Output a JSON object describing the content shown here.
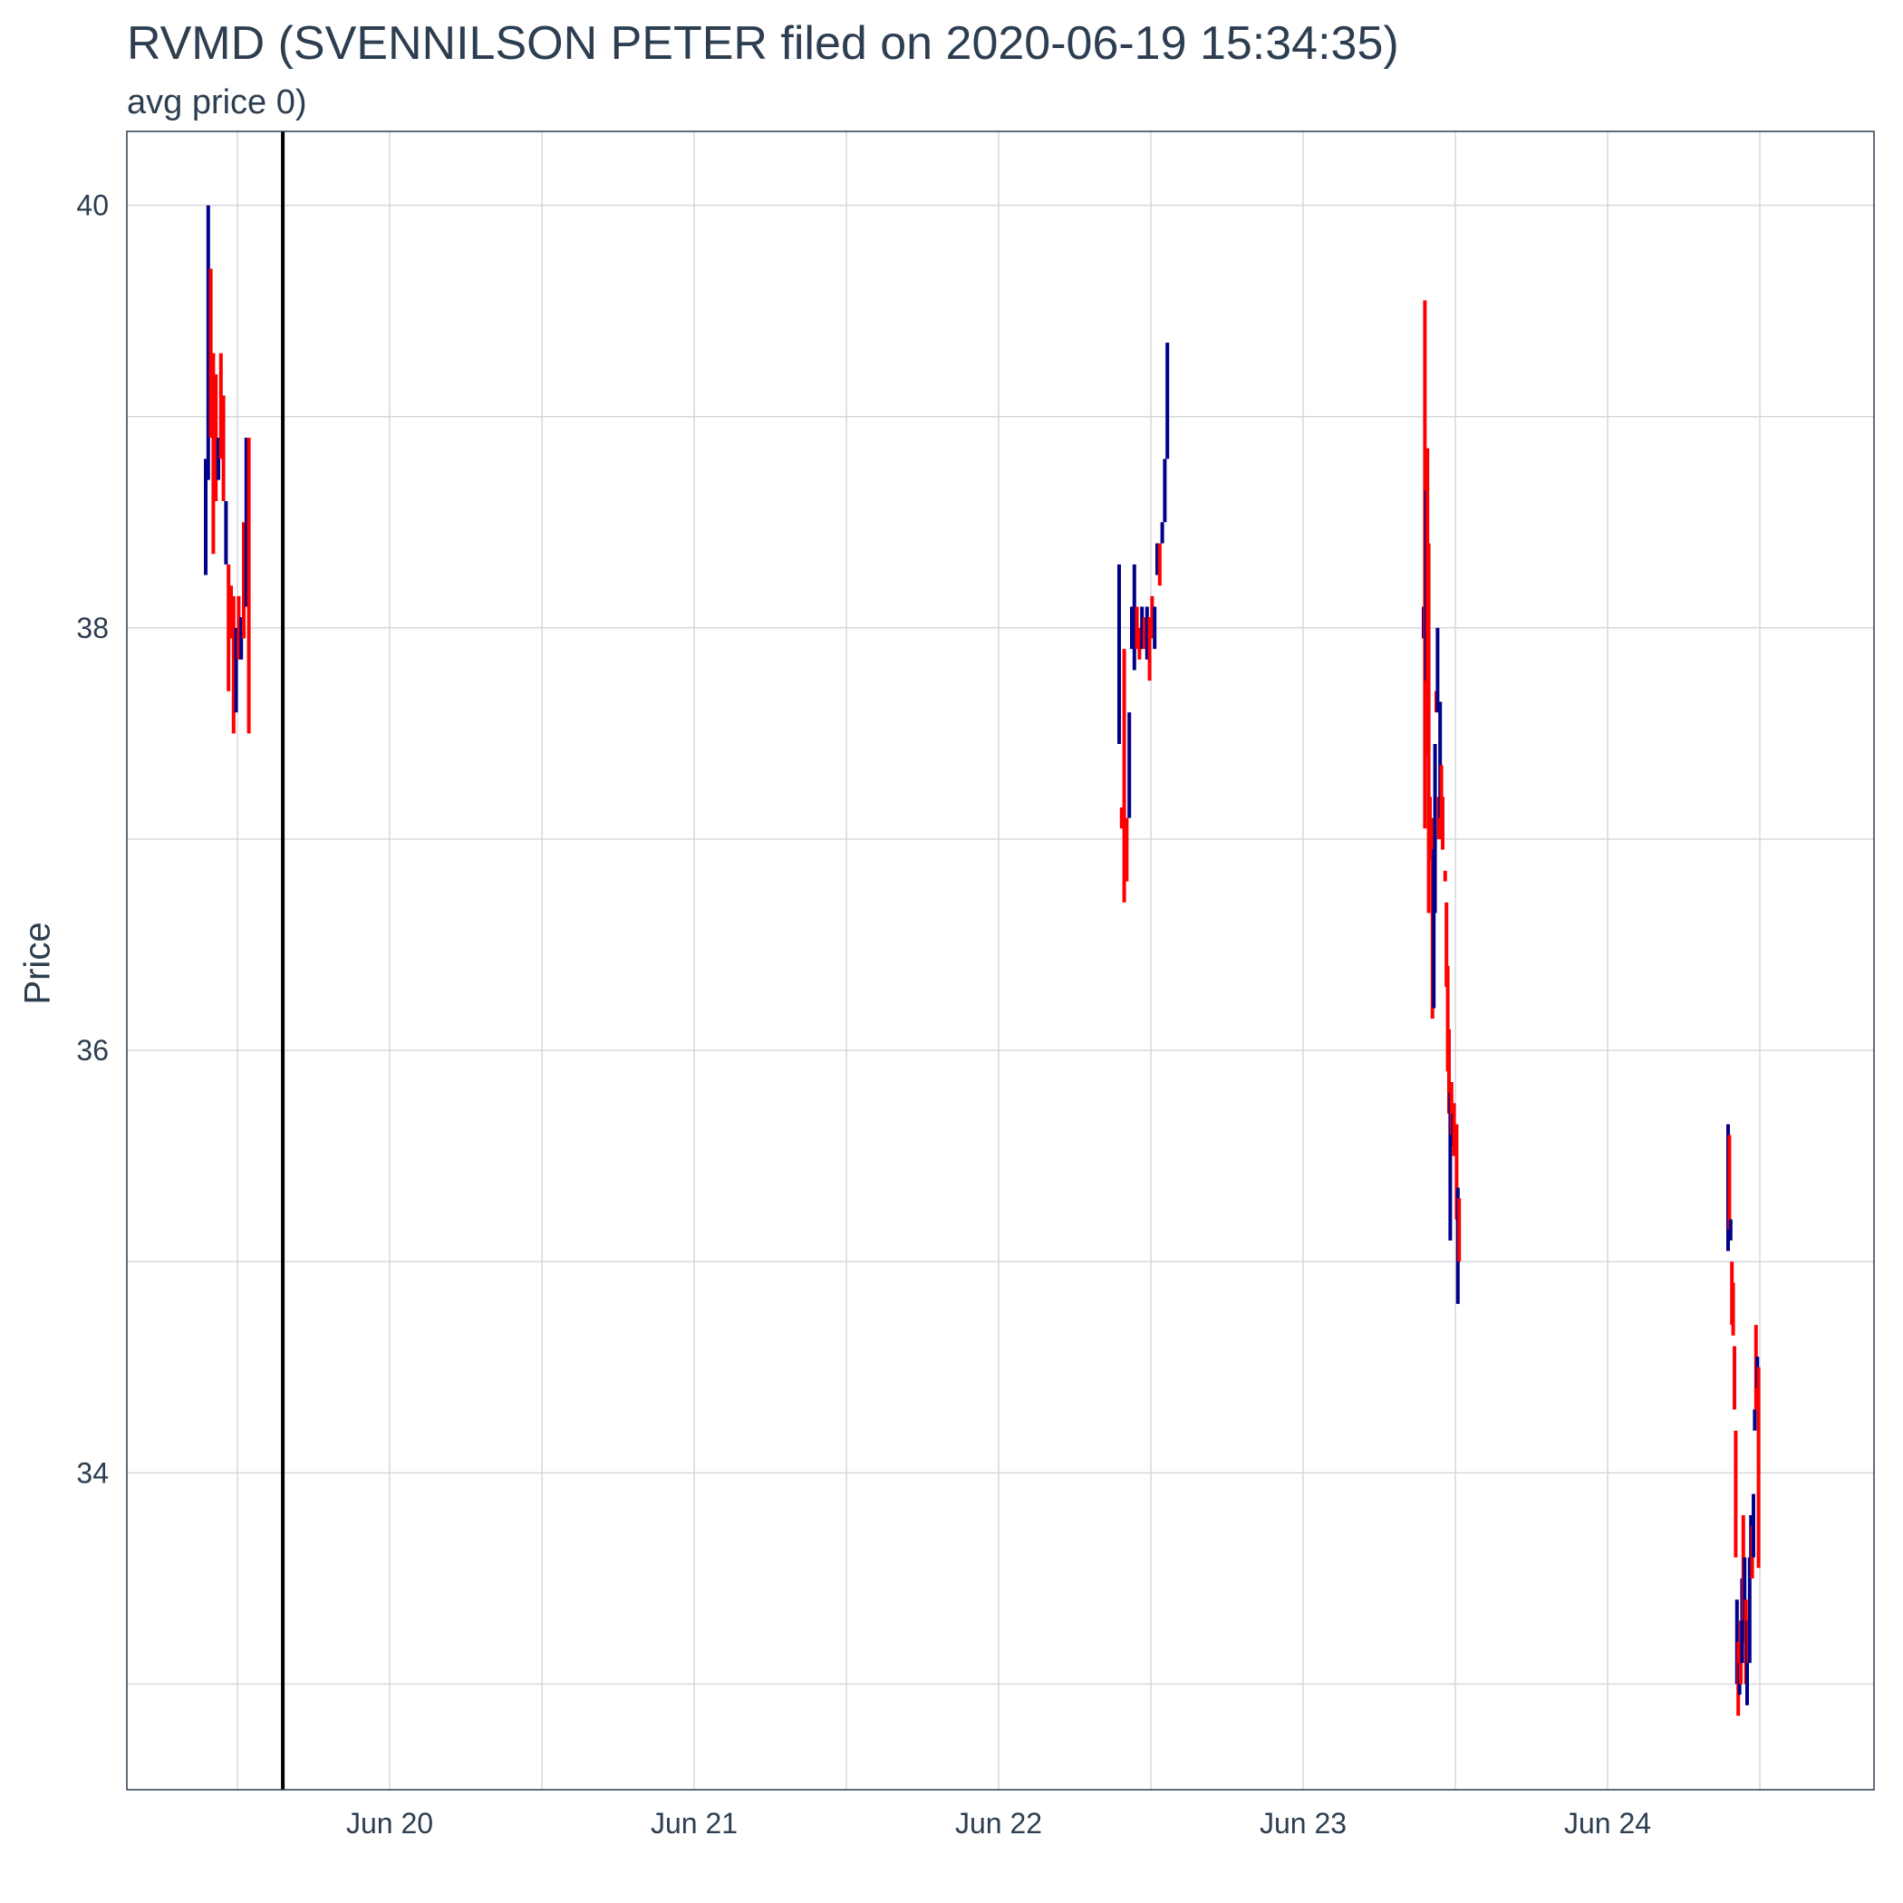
{
  "chart_data": {
    "type": "bar",
    "title": "RVMD (SVENNILSON PETER filed on 2020-06-19 15:34:35)",
    "subtitle": "avg price 0)",
    "xlabel": "",
    "ylabel": "Price",
    "x_ticks": [
      "Jun 20",
      "Jun 21",
      "Jun 22",
      "Jun 23",
      "Jun 24"
    ],
    "y_ticks": [
      34,
      36,
      38,
      40
    ],
    "ylim": [
      32.5,
      40.35
    ],
    "grid": true,
    "legend": "none",
    "up_color": "#00008b",
    "down_color": "#ff0000",
    "marker_line_color": "#000000",
    "filing_marker": "2020-06-19 15:34:35",
    "ranges": [
      {
        "time": "2020-06-19 09:30",
        "high": 38.8,
        "low": 38.25,
        "dir": "up"
      },
      {
        "time": "2020-06-19 09:42",
        "high": 40.0,
        "low": 38.7,
        "dir": "up"
      },
      {
        "time": "2020-06-19 09:54",
        "high": 39.7,
        "low": 38.9,
        "dir": "down"
      },
      {
        "time": "2020-06-19 10:06",
        "high": 39.3,
        "low": 38.35,
        "dir": "down"
      },
      {
        "time": "2020-06-19 10:18",
        "high": 39.2,
        "low": 38.6,
        "dir": "down"
      },
      {
        "time": "2020-06-19 10:30",
        "high": 38.9,
        "low": 38.7,
        "dir": "up"
      },
      {
        "time": "2020-06-19 10:42",
        "high": 39.3,
        "low": 38.8,
        "dir": "down"
      },
      {
        "time": "2020-06-19 10:54",
        "high": 39.1,
        "low": 38.6,
        "dir": "down"
      },
      {
        "time": "2020-06-19 11:06",
        "high": 38.6,
        "low": 38.3,
        "dir": "up"
      },
      {
        "time": "2020-06-19 11:18",
        "high": 38.3,
        "low": 37.7,
        "dir": "down"
      },
      {
        "time": "2020-06-19 11:30",
        "high": 38.2,
        "low": 37.95,
        "dir": "down"
      },
      {
        "time": "2020-06-19 11:42",
        "high": 38.15,
        "low": 37.5,
        "dir": "down"
      },
      {
        "time": "2020-06-19 11:54",
        "high": 38.0,
        "low": 37.6,
        "dir": "up"
      },
      {
        "time": "2020-06-19 12:06",
        "high": 38.15,
        "low": 37.85,
        "dir": "down"
      },
      {
        "time": "2020-06-19 12:18",
        "high": 38.05,
        "low": 37.85,
        "dir": "up"
      },
      {
        "time": "2020-06-19 12:30",
        "high": 38.5,
        "low": 37.95,
        "dir": "down"
      },
      {
        "time": "2020-06-19 12:42",
        "high": 38.9,
        "low": 38.1,
        "dir": "up"
      },
      {
        "time": "2020-06-19 12:54",
        "high": 38.9,
        "low": 37.5,
        "dir": "down"
      },
      {
        "time": "2020-06-22 09:30",
        "high": 38.3,
        "low": 37.45,
        "dir": "up"
      },
      {
        "time": "2020-06-22 09:42",
        "high": 37.15,
        "low": 37.05,
        "dir": "down"
      },
      {
        "time": "2020-06-22 09:54",
        "high": 37.9,
        "low": 36.7,
        "dir": "down"
      },
      {
        "time": "2020-06-22 10:06",
        "high": 37.1,
        "low": 36.8,
        "dir": "down"
      },
      {
        "time": "2020-06-22 10:18",
        "high": 37.6,
        "low": 37.1,
        "dir": "up"
      },
      {
        "time": "2020-06-22 10:30",
        "high": 38.1,
        "low": 37.9,
        "dir": "up"
      },
      {
        "time": "2020-06-22 10:42",
        "high": 38.3,
        "low": 37.8,
        "dir": "up"
      },
      {
        "time": "2020-06-22 10:54",
        "high": 38.1,
        "low": 37.9,
        "dir": "down"
      },
      {
        "time": "2020-06-22 11:06",
        "high": 38.0,
        "low": 37.85,
        "dir": "down"
      },
      {
        "time": "2020-06-22 11:18",
        "high": 38.1,
        "low": 37.9,
        "dir": "up"
      },
      {
        "time": "2020-06-22 11:30",
        "high": 38.05,
        "low": 37.9,
        "dir": "down"
      },
      {
        "time": "2020-06-22 11:42",
        "high": 38.1,
        "low": 37.85,
        "dir": "up"
      },
      {
        "time": "2020-06-22 11:54",
        "high": 38.05,
        "low": 37.75,
        "dir": "down"
      },
      {
        "time": "2020-06-22 12:06",
        "high": 38.15,
        "low": 37.95,
        "dir": "down"
      },
      {
        "time": "2020-06-22 12:18",
        "high": 38.1,
        "low": 37.9,
        "dir": "up"
      },
      {
        "time": "2020-06-22 12:30",
        "high": 38.4,
        "low": 38.25,
        "dir": "up"
      },
      {
        "time": "2020-06-22 12:42",
        "high": 38.4,
        "low": 38.2,
        "dir": "down"
      },
      {
        "time": "2020-06-22 12:54",
        "high": 38.5,
        "low": 38.4,
        "dir": "up"
      },
      {
        "time": "2020-06-22 13:06",
        "high": 38.8,
        "low": 38.5,
        "dir": "up"
      },
      {
        "time": "2020-06-22 13:18",
        "high": 39.35,
        "low": 38.8,
        "dir": "up"
      },
      {
        "time": "2020-06-23 09:30",
        "high": 38.1,
        "low": 37.95,
        "dir": "up"
      },
      {
        "time": "2020-06-23 09:36",
        "high": 39.55,
        "low": 37.05,
        "dir": "down"
      },
      {
        "time": "2020-06-23 09:42",
        "high": 38.65,
        "low": 37.75,
        "dir": "up"
      },
      {
        "time": "2020-06-23 09:48",
        "high": 38.85,
        "low": 37.4,
        "dir": "down"
      },
      {
        "time": "2020-06-23 09:54",
        "high": 38.4,
        "low": 36.65,
        "dir": "down"
      },
      {
        "time": "2020-06-23 10:00",
        "high": 37.2,
        "low": 36.9,
        "dir": "down"
      },
      {
        "time": "2020-06-23 10:12",
        "high": 37.1,
        "low": 36.15,
        "dir": "down"
      },
      {
        "time": "2020-06-23 10:18",
        "high": 36.95,
        "low": 36.2,
        "dir": "up"
      },
      {
        "time": "2020-06-23 10:24",
        "high": 37.45,
        "low": 36.65,
        "dir": "up"
      },
      {
        "time": "2020-06-23 10:30",
        "high": 37.7,
        "low": 37.6,
        "dir": "down"
      },
      {
        "time": "2020-06-23 10:36",
        "high": 38.0,
        "low": 37.6,
        "dir": "up"
      },
      {
        "time": "2020-06-23 10:42",
        "high": 37.2,
        "low": 37.0,
        "dir": "down"
      },
      {
        "time": "2020-06-23 10:48",
        "high": 37.65,
        "low": 37.1,
        "dir": "up"
      },
      {
        "time": "2020-06-23 10:54",
        "high": 37.35,
        "low": 37.0,
        "dir": "down"
      },
      {
        "time": "2020-06-23 11:00",
        "high": 37.2,
        "low": 36.95,
        "dir": "down"
      },
      {
        "time": "2020-06-23 11:12",
        "high": 36.85,
        "low": 36.8,
        "dir": "down"
      },
      {
        "time": "2020-06-23 11:18",
        "high": 36.7,
        "low": 36.3,
        "dir": "down"
      },
      {
        "time": "2020-06-23 11:24",
        "high": 36.4,
        "low": 35.9,
        "dir": "down"
      },
      {
        "time": "2020-06-23 11:30",
        "high": 36.1,
        "low": 35.7,
        "dir": "down"
      },
      {
        "time": "2020-06-23 11:36",
        "high": 35.8,
        "low": 35.1,
        "dir": "up"
      },
      {
        "time": "2020-06-23 11:42",
        "high": 35.85,
        "low": 35.6,
        "dir": "down"
      },
      {
        "time": "2020-06-23 11:48",
        "high": 35.7,
        "low": 35.55,
        "dir": "up"
      },
      {
        "time": "2020-06-23 11:54",
        "high": 35.75,
        "low": 35.5,
        "dir": "down"
      },
      {
        "time": "2020-06-23 12:06",
        "high": 35.65,
        "low": 35.2,
        "dir": "down"
      },
      {
        "time": "2020-06-23 12:12",
        "high": 35.35,
        "low": 34.8,
        "dir": "up"
      },
      {
        "time": "2020-06-23 12:18",
        "high": 35.3,
        "low": 35.0,
        "dir": "down"
      },
      {
        "time": "2020-06-24 09:30",
        "high": 35.65,
        "low": 35.05,
        "dir": "up"
      },
      {
        "time": "2020-06-24 09:36",
        "high": 35.6,
        "low": 35.15,
        "dir": "down"
      },
      {
        "time": "2020-06-24 09:42",
        "high": 35.2,
        "low": 35.1,
        "dir": "up"
      },
      {
        "time": "2020-06-24 09:48",
        "high": 35.0,
        "low": 34.7,
        "dir": "down"
      },
      {
        "time": "2020-06-24 09:54",
        "high": 34.9,
        "low": 34.65,
        "dir": "down"
      },
      {
        "time": "2020-06-24 10:00",
        "high": 34.6,
        "low": 34.3,
        "dir": "down"
      },
      {
        "time": "2020-06-24 10:06",
        "high": 34.2,
        "low": 33.6,
        "dir": "down"
      },
      {
        "time": "2020-06-24 10:12",
        "high": 33.4,
        "low": 33.0,
        "dir": "up"
      },
      {
        "time": "2020-06-24 10:18",
        "high": 33.2,
        "low": 32.85,
        "dir": "down"
      },
      {
        "time": "2020-06-24 10:24",
        "high": 33.1,
        "low": 32.95,
        "dir": "up"
      },
      {
        "time": "2020-06-24 10:30",
        "high": 33.3,
        "low": 33.0,
        "dir": "down"
      },
      {
        "time": "2020-06-24 10:36",
        "high": 33.5,
        "low": 33.1,
        "dir": "up"
      },
      {
        "time": "2020-06-24 10:42",
        "high": 33.8,
        "low": 33.3,
        "dir": "down"
      },
      {
        "time": "2020-06-24 10:48",
        "high": 33.6,
        "low": 33.2,
        "dir": "up"
      },
      {
        "time": "2020-06-24 10:54",
        "high": 33.4,
        "low": 33.0,
        "dir": "down"
      },
      {
        "time": "2020-06-24 11:00",
        "high": 33.3,
        "low": 32.9,
        "dir": "up"
      },
      {
        "time": "2020-06-24 11:06",
        "high": 33.3,
        "low": 33.1,
        "dir": "down"
      },
      {
        "time": "2020-06-24 11:12",
        "high": 33.6,
        "low": 33.1,
        "dir": "up"
      },
      {
        "time": "2020-06-24 11:18",
        "high": 33.8,
        "low": 33.6,
        "dir": "up"
      },
      {
        "time": "2020-06-24 11:24",
        "high": 33.75,
        "low": 33.5,
        "dir": "down"
      },
      {
        "time": "2020-06-24 11:30",
        "high": 33.9,
        "low": 33.6,
        "dir": "up"
      },
      {
        "time": "2020-06-24 11:36",
        "high": 34.3,
        "low": 34.2,
        "dir": "up"
      },
      {
        "time": "2020-06-24 11:42",
        "high": 34.7,
        "low": 34.3,
        "dir": "down"
      },
      {
        "time": "2020-06-24 11:48",
        "high": 34.55,
        "low": 34.4,
        "dir": "up"
      },
      {
        "time": "2020-06-24 11:54",
        "high": 34.5,
        "low": 33.55,
        "dir": "down"
      }
    ]
  }
}
